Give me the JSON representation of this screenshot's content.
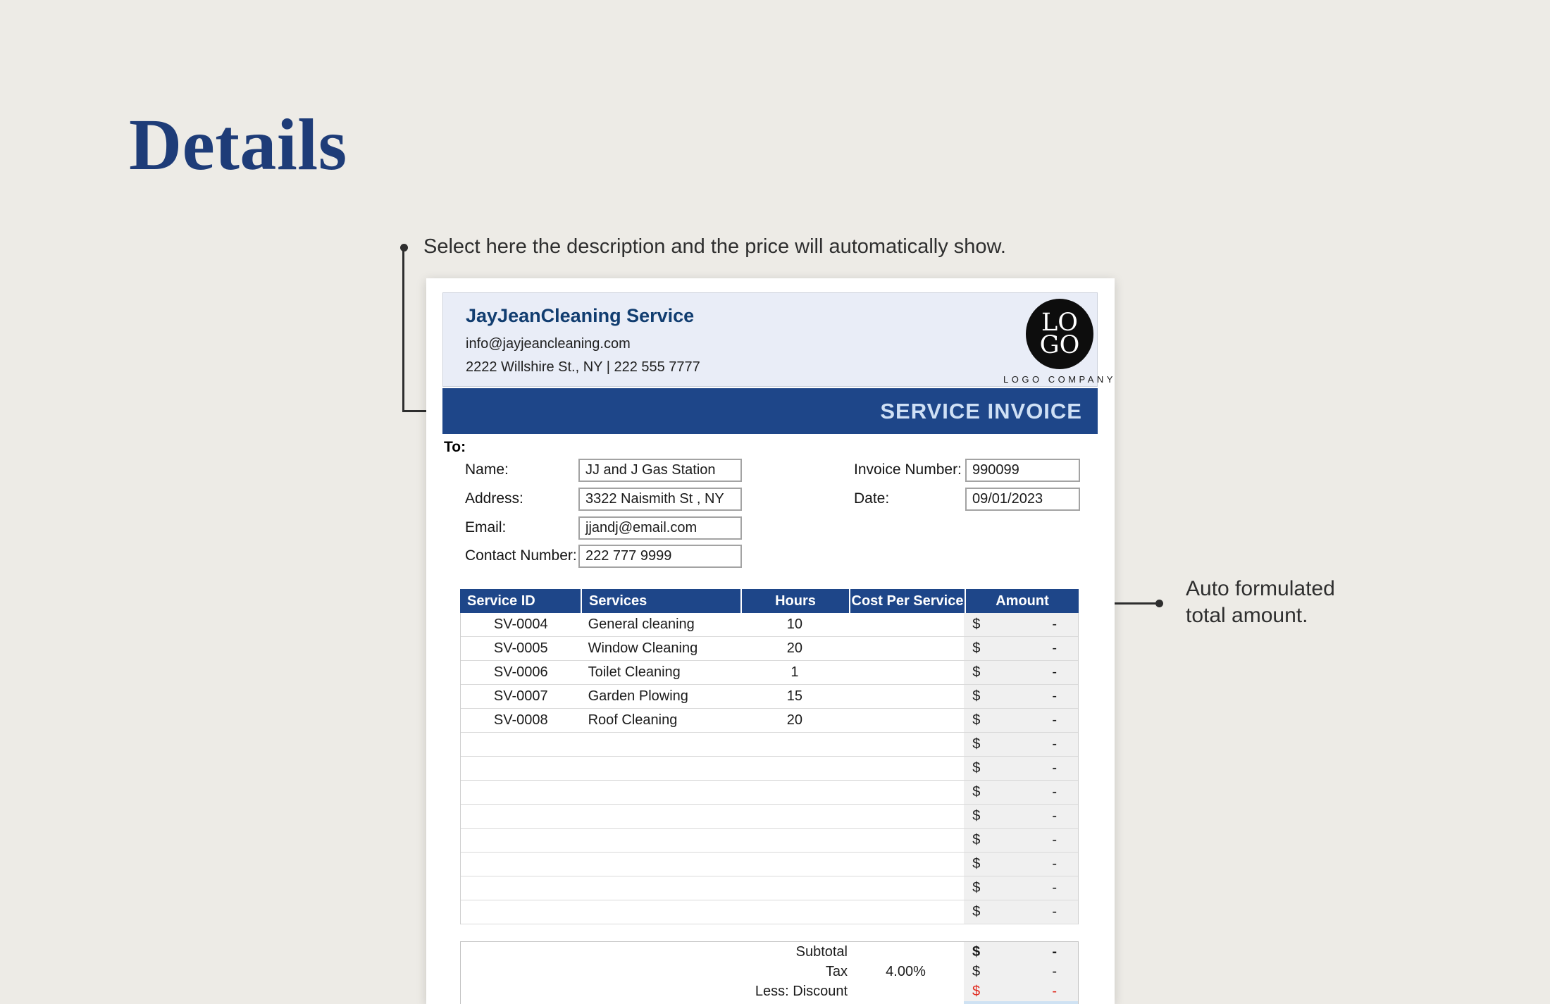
{
  "page": {
    "title": "Details",
    "background": "#edebe6",
    "title_color": "#1e3c78"
  },
  "annotations": {
    "left": {
      "text": "Select here the description and the price will automatically show."
    },
    "right": {
      "text": "Auto formulated total amount."
    }
  },
  "invoice": {
    "company": {
      "name": "JayJeanCleaning Service",
      "email": "info@jayjeancleaning.com",
      "address_phone": "2222 Willshire St., NY | 222 555 7777"
    },
    "logo": {
      "line1": "LO",
      "line2": "GO",
      "caption": "LOGO COMPANY"
    },
    "banner": "SERVICE INVOICE",
    "to_label": "To:",
    "bill_to": {
      "name_label": "Name:",
      "name_value": "JJ and J Gas Station",
      "address_label": "Address:",
      "address_value": "3322 Naismith St , NY",
      "email_label": "Email:",
      "email_value": "jjandj@email.com",
      "contact_label": "Contact Number:",
      "contact_value": "222 777 9999"
    },
    "meta": {
      "invoice_number_label": "Invoice Number:",
      "invoice_number_value": "990099",
      "date_label": "Date:",
      "date_value": "09/01/2023"
    },
    "table": {
      "headers": [
        "Service ID",
        "Services",
        "Hours",
        "Cost Per Service",
        "Amount"
      ],
      "currency_symbol": "$",
      "rows": [
        {
          "service_id": "SV-0004",
          "service": "General cleaning",
          "hours": "10",
          "cost": "",
          "amount": "-"
        },
        {
          "service_id": "SV-0005",
          "service": "Window Cleaning",
          "hours": "20",
          "cost": "",
          "amount": "-"
        },
        {
          "service_id": "SV-0006",
          "service": "Toilet Cleaning",
          "hours": "1",
          "cost": "",
          "amount": "-"
        },
        {
          "service_id": "SV-0007",
          "service": "Garden Plowing",
          "hours": "15",
          "cost": "",
          "amount": "-"
        },
        {
          "service_id": "SV-0008",
          "service": "Roof Cleaning",
          "hours": "20",
          "cost": "",
          "amount": "-"
        },
        {
          "service_id": "",
          "service": "",
          "hours": "",
          "cost": "",
          "amount": "-"
        },
        {
          "service_id": "",
          "service": "",
          "hours": "",
          "cost": "",
          "amount": "-"
        },
        {
          "service_id": "",
          "service": "",
          "hours": "",
          "cost": "",
          "amount": "-"
        },
        {
          "service_id": "",
          "service": "",
          "hours": "",
          "cost": "",
          "amount": "-"
        },
        {
          "service_id": "",
          "service": "",
          "hours": "",
          "cost": "",
          "amount": "-"
        },
        {
          "service_id": "",
          "service": "",
          "hours": "",
          "cost": "",
          "amount": "-"
        },
        {
          "service_id": "",
          "service": "",
          "hours": "",
          "cost": "",
          "amount": "-"
        },
        {
          "service_id": "",
          "service": "",
          "hours": "",
          "cost": "",
          "amount": "-"
        }
      ]
    },
    "totals": {
      "subtotal_label": "Subtotal",
      "subtotal_amount": "-",
      "tax_label": "Tax",
      "tax_rate": "4.00%",
      "tax_amount": "-",
      "discount_label": "Less: Discount",
      "discount_amount": "-",
      "total_amount": "-"
    },
    "colors": {
      "accent_blue": "#1e4689",
      "header_panel": "#e9edf7",
      "banner_text": "#cfe0f5",
      "amount_column_bg": "#f0f0f0",
      "discount_red": "#e02b20",
      "total_highlight": "#cfe2f3"
    }
  }
}
